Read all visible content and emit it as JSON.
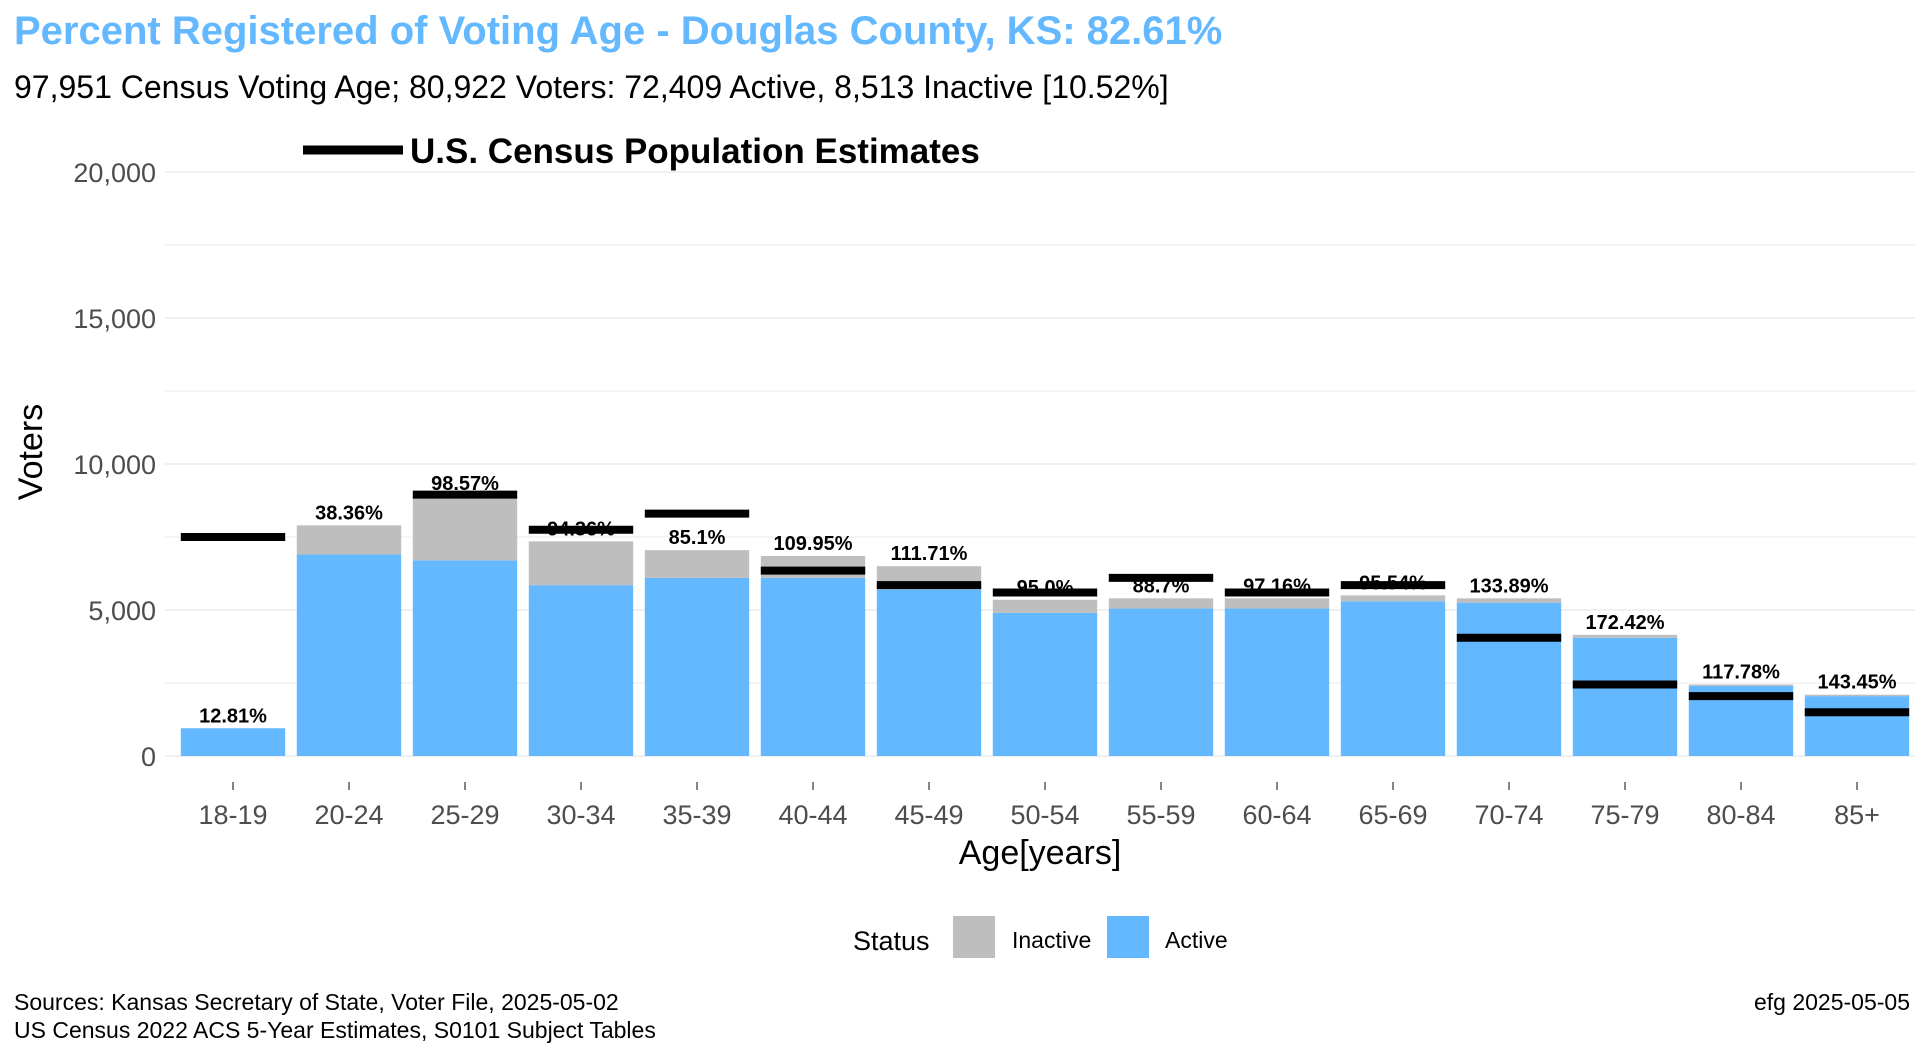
{
  "title": "Percent Registered of Voting Age - Douglas County, KS: 82.61%",
  "subtitle": "97,951 Census Voting Age; 80,922 Voters:  72,409 Active, 8,513 Inactive [10.52%]",
  "census_legend_label": "U.S. Census Population Estimates",
  "caption_left_line1": "Sources: Kansas Secretary of State, Voter File, 2025-05-02",
  "caption_left_line2": "US Census 2022 ACS 5-Year Estimates, S0101 Subject Tables",
  "caption_right": "efg 2025-05-05",
  "legend": {
    "title": "Status",
    "items": [
      {
        "label": "Inactive",
        "color": "#bebebe"
      },
      {
        "label": "Active",
        "color": "#63b8ff"
      }
    ]
  },
  "colors": {
    "title": "#63b8ff",
    "active": "#63b8ff",
    "inactive": "#bebebe",
    "census": "#000000",
    "grid": "#ebebeb"
  },
  "chart_data": {
    "type": "bar",
    "stacked": true,
    "xlabel": "Age[years]",
    "ylabel": "Voters",
    "ylim": [
      0,
      20600
    ],
    "yticks": [
      0,
      5000,
      10000,
      15000,
      20000
    ],
    "ytick_labels": [
      "0",
      "5,000",
      "10,000",
      "15,000",
      "20,000"
    ],
    "grid": true,
    "legend_position": "bottom",
    "categories": [
      "18-19",
      "20-24",
      "25-29",
      "30-34",
      "35-39",
      "40-44",
      "45-49",
      "50-54",
      "55-59",
      "60-64",
      "65-69",
      "70-74",
      "75-79",
      "80-84",
      "85+"
    ],
    "series": [
      {
        "name": "Active",
        "values": [
          950,
          6900,
          6700,
          5850,
          6100,
          6100,
          5700,
          4900,
          5050,
          5050,
          5300,
          5250,
          4050,
          2400,
          2050
        ]
      },
      {
        "name": "Inactive",
        "values": [
          0,
          1000,
          2200,
          1500,
          950,
          750,
          800,
          450,
          350,
          350,
          200,
          150,
          100,
          50,
          50
        ]
      }
    ],
    "census_estimates": [
      7500,
      0,
      8950,
      7750,
      8300,
      6350,
      5850,
      5600,
      6100,
      5600,
      5850,
      4050,
      2450,
      2050,
      1500
    ],
    "percent_labels": [
      "12.81%",
      "38.36%",
      "98.57%",
      "94.36%",
      "85.1%",
      "109.95%",
      "111.71%",
      "95.0%",
      "88.7%",
      "97.16%",
      "95.54%",
      "133.89%",
      "172.42%",
      "117.78%",
      "143.45%"
    ]
  }
}
